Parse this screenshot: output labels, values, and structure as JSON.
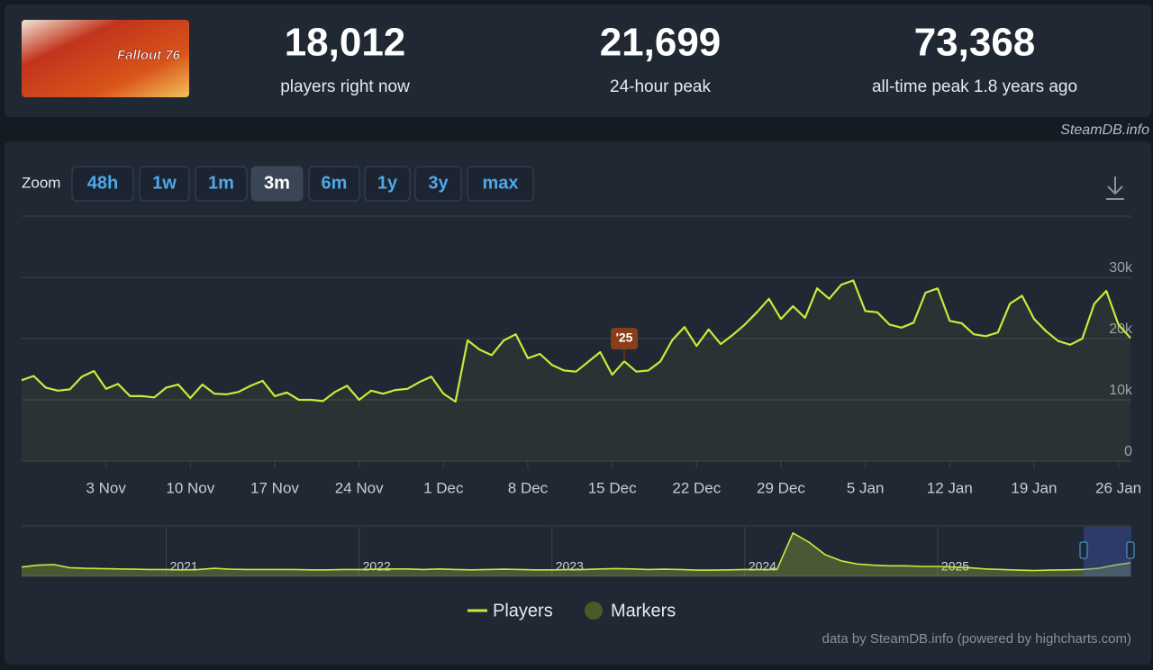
{
  "header": {
    "image_text": "Fallout 76",
    "stats": [
      {
        "value": "18,012",
        "label": "players right now"
      },
      {
        "value": "21,699",
        "label": "24-hour peak"
      },
      {
        "value": "73,368",
        "label": "all-time peak 1.8 years ago"
      }
    ]
  },
  "source": "SteamDB.info",
  "zoom": {
    "label": "Zoom",
    "buttons": [
      "48h",
      "1w",
      "1m",
      "3m",
      "6m",
      "1y",
      "3y",
      "max"
    ],
    "active": "3m"
  },
  "chart_data": {
    "type": "line",
    "x": [
      "27 Oct",
      "28 Oct",
      "29 Oct",
      "30 Oct",
      "31 Oct",
      "1 Nov",
      "2 Nov",
      "3 Nov",
      "4 Nov",
      "5 Nov",
      "6 Nov",
      "7 Nov",
      "8 Nov",
      "9 Nov",
      "10 Nov",
      "11 Nov",
      "12 Nov",
      "13 Nov",
      "14 Nov",
      "15 Nov",
      "16 Nov",
      "17 Nov",
      "18 Nov",
      "19 Nov",
      "20 Nov",
      "21 Nov",
      "22 Nov",
      "23 Nov",
      "24 Nov",
      "25 Nov",
      "26 Nov",
      "27 Nov",
      "28 Nov",
      "29 Nov",
      "30 Nov",
      "1 Dec",
      "2 Dec",
      "3 Dec",
      "4 Dec",
      "5 Dec",
      "6 Dec",
      "7 Dec",
      "8 Dec",
      "9 Dec",
      "10 Dec",
      "11 Dec",
      "12 Dec",
      "13 Dec",
      "14 Dec",
      "15 Dec",
      "16 Dec",
      "17 Dec",
      "18 Dec",
      "19 Dec",
      "20 Dec",
      "21 Dec",
      "22 Dec",
      "23 Dec",
      "24 Dec",
      "25 Dec",
      "26 Dec",
      "27 Dec",
      "28 Dec",
      "29 Dec",
      "30 Dec",
      "31 Dec",
      "1 Jan",
      "2 Jan",
      "3 Jan",
      "4 Jan",
      "5 Jan",
      "6 Jan",
      "7 Jan",
      "8 Jan",
      "9 Jan",
      "10 Jan",
      "11 Jan",
      "12 Jan",
      "13 Jan",
      "14 Jan",
      "15 Jan",
      "16 Jan",
      "17 Jan",
      "18 Jan",
      "19 Jan",
      "20 Jan",
      "21 Jan",
      "22 Jan",
      "23 Jan",
      "24 Jan",
      "25 Jan",
      "26 Jan",
      "27 Jan"
    ],
    "series": [
      {
        "name": "Players",
        "color": "#c6ec3b",
        "values": [
          13200,
          13900,
          12000,
          11500,
          11700,
          13800,
          14700,
          11800,
          12600,
          10600,
          10600,
          10400,
          12000,
          12500,
          10300,
          12500,
          11000,
          10900,
          11300,
          12300,
          13100,
          10600,
          11200,
          10000,
          10000,
          9800,
          11300,
          12300,
          10000,
          11500,
          11000,
          11600,
          11800,
          12900,
          13800,
          11000,
          9700,
          19700,
          18200,
          17300,
          19700,
          20700,
          16800,
          17500,
          15700,
          14800,
          14600,
          16200,
          17800,
          14100,
          16300,
          14600,
          14800,
          16300,
          19800,
          21900,
          18800,
          21500,
          19100,
          20600,
          22300,
          24300,
          26500,
          23200,
          25300,
          23400,
          28200,
          26500,
          28800,
          29500,
          24500,
          24300,
          22300,
          21800,
          22600,
          27500,
          28200,
          22900,
          22500,
          20700,
          20400,
          21000,
          25700,
          27000,
          23200,
          21200,
          19600,
          19000,
          20000,
          25700,
          27800,
          22300,
          20100
        ]
      }
    ],
    "markers": {
      "name": "Markers",
      "color": "#4b5a26"
    },
    "annotations": [
      {
        "text": "'25",
        "x": "16 Dec"
      }
    ],
    "ylim": [
      0,
      40000
    ],
    "yticks": [
      0,
      {
        "value": 10000,
        "label": "10k"
      },
      {
        "value": 20000,
        "label": "20k"
      },
      {
        "value": 30000,
        "label": "30k"
      }
    ],
    "xticks": [
      "3 Nov",
      "10 Nov",
      "17 Nov",
      "24 Nov",
      "1 Dec",
      "8 Dec",
      "15 Dec",
      "22 Dec",
      "29 Dec",
      "5 Jan",
      "12 Jan",
      "19 Jan",
      "26 Jan"
    ],
    "grid": true
  },
  "navigator": {
    "ylim": [
      0,
      80000
    ],
    "years": [
      "2021",
      "2022",
      "2023",
      "2024",
      "2025"
    ],
    "values": [
      15000,
      18000,
      19000,
      14000,
      13000,
      12500,
      12000,
      11500,
      11000,
      11000,
      10500,
      11000,
      13000,
      11500,
      11000,
      11000,
      11000,
      11000,
      10500,
      10500,
      11000,
      11000,
      11500,
      12000,
      12000,
      11000,
      12000,
      11000,
      10500,
      11000,
      11500,
      11000,
      10500,
      10500,
      11000,
      11000,
      12000,
      12500,
      12000,
      11000,
      11500,
      11000,
      10000,
      10000,
      10500,
      11000,
      11000,
      11000,
      70000,
      55000,
      35000,
      25000,
      20000,
      18000,
      17000,
      17000,
      16000,
      16000,
      15000,
      14000,
      12000,
      11000,
      10000,
      9500,
      10000,
      10500,
      11000,
      13000,
      18000,
      22000
    ]
  },
  "credit": "data by SteamDB.info (powered by highcharts.com)"
}
